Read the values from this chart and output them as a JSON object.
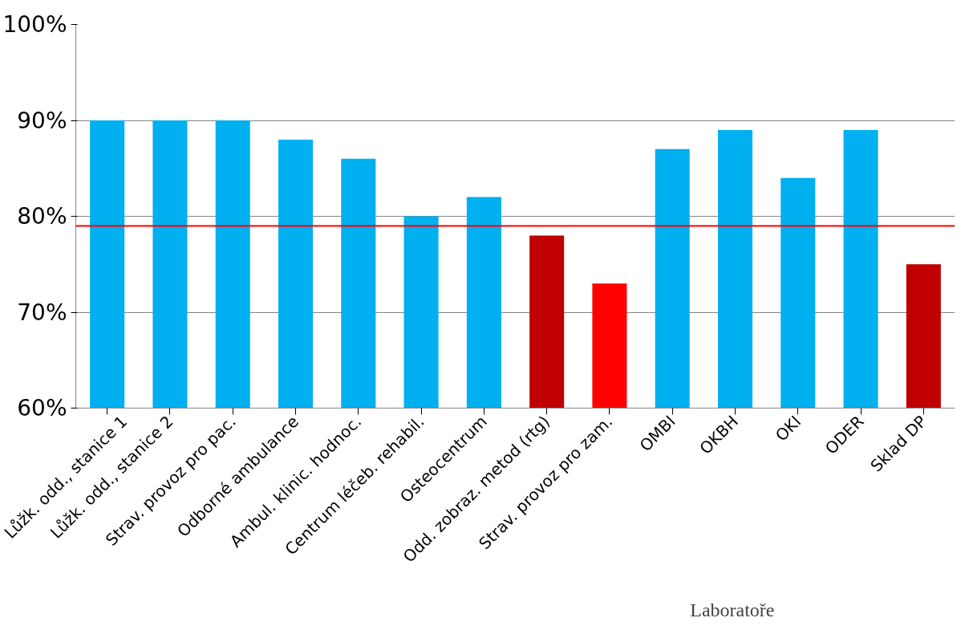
{
  "chart_data": {
    "type": "bar",
    "categories": [
      "Lůžk. odd., stanice 1",
      "Lůžk. odd., stanice 2",
      "Strav. provoz pro pac.",
      "Odborné ambulance",
      "Ambul. klinic. hodnoc.",
      "Centrum léčeb. rehabil.",
      "Osteocentrum",
      "Odd. zobraz. metod (rtg)",
      "Strav. provoz pro zam.",
      "OMBI",
      "OKBH",
      "OKI",
      "ODER",
      "Sklad DP"
    ],
    "values": [
      90,
      90,
      90,
      88,
      86,
      80,
      82,
      78,
      73,
      87,
      89,
      84,
      89,
      75
    ],
    "colors": [
      "#00b0f0",
      "#00b0f0",
      "#00b0f0",
      "#00b0f0",
      "#00b0f0",
      "#00b0f0",
      "#00b0f0",
      "#c00000",
      "#ff0000",
      "#00b0f0",
      "#00b0f0",
      "#00b0f0",
      "#00b0f0",
      "#c00000"
    ],
    "ylim": [
      60,
      100
    ],
    "yticks": [
      {
        "value": 60,
        "label": "60%"
      },
      {
        "value": 70,
        "label": "70%"
      },
      {
        "value": 80,
        "label": "80%"
      },
      {
        "value": 90,
        "label": "90%"
      },
      {
        "value": 100,
        "label": "100%"
      }
    ],
    "grid": "y",
    "ref_lines": [
      {
        "axis": "y",
        "value": 79,
        "color": "#ff0000"
      }
    ],
    "annotations": [
      "Laboratoře"
    ]
  }
}
